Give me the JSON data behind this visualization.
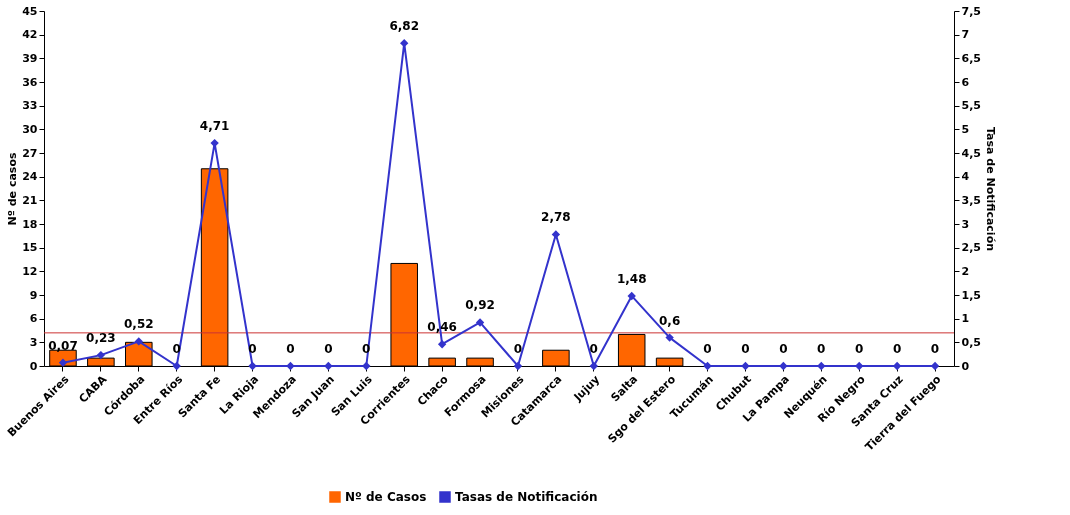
{
  "chart_data": {
    "type": "bar",
    "categories": [
      "Buenos Aires",
      "CABA",
      "Córdoba",
      "Entre Ríos",
      "Santa Fe",
      "La Rioja",
      "Mendoza",
      "San Juan",
      "San Luis",
      "Corrientes",
      "Chaco",
      "Formosa",
      "Misiones",
      "Catamarca",
      "Jujuy",
      "Salta",
      "Sgo del Estero",
      "Tucumán",
      "Chubut",
      "La Pampa",
      "Neuquén",
      "Río Negro",
      "Santa Cruz",
      "Tierra del Fuego"
    ],
    "series": [
      {
        "name": "Nº de Casos",
        "type": "bar",
        "color": "#ff6600",
        "values": [
          2,
          1,
          3,
          0,
          25,
          0,
          0,
          0,
          0,
          13,
          1,
          1,
          0,
          2,
          0,
          4,
          1,
          0,
          0,
          0,
          0,
          0,
          0,
          0
        ]
      },
      {
        "name": "Tasas de Notificación",
        "type": "line",
        "axis": "y2",
        "color": "#3333cc",
        "marker": "diamond",
        "values": [
          0.07,
          0.23,
          0.52,
          0,
          4.71,
          0,
          0,
          0,
          0,
          6.82,
          0.46,
          0.92,
          0,
          2.78,
          0,
          1.48,
          0.6,
          0,
          0,
          0,
          0,
          0,
          0,
          0
        ],
        "value_labels": [
          "0,07",
          "0,23",
          "0,52",
          "0",
          "4,71",
          "0",
          "0",
          "0",
          "0",
          "6,82",
          "0,46",
          "0,92",
          "0",
          "2,78",
          "0",
          "1,48",
          "0,6",
          "0",
          "0",
          "0",
          "0",
          "0",
          "0",
          "0"
        ]
      }
    ],
    "ylabel": "Nº de casos",
    "y2label": "Tasa de Notificación",
    "ylim": [
      0,
      45
    ],
    "yticks": [
      0,
      3,
      6,
      9,
      12,
      15,
      18,
      21,
      24,
      27,
      30,
      33,
      36,
      39,
      42,
      45
    ],
    "y2lim": [
      0,
      7.5
    ],
    "y2ticks": [
      0,
      {
        "value": 0.5,
        "label": "0,5"
      },
      1,
      {
        "value": 1.5,
        "label": "1,5"
      },
      2,
      {
        "value": 2.5,
        "label": "2,5"
      },
      3,
      {
        "value": 3.5,
        "label": "3,5"
      },
      4,
      {
        "value": 4.5,
        "label": "4,5"
      },
      5,
      {
        "value": 5.5,
        "label": "5,5"
      },
      6,
      {
        "value": 6.5,
        "label": "6,5"
      },
      7,
      {
        "value": 7.5,
        "label": "7,5"
      }
    ],
    "ref_lines": [
      {
        "axis": "y",
        "value": 4.2,
        "color": "#cc3333"
      }
    ],
    "legend": "bottom",
    "grid": false
  }
}
